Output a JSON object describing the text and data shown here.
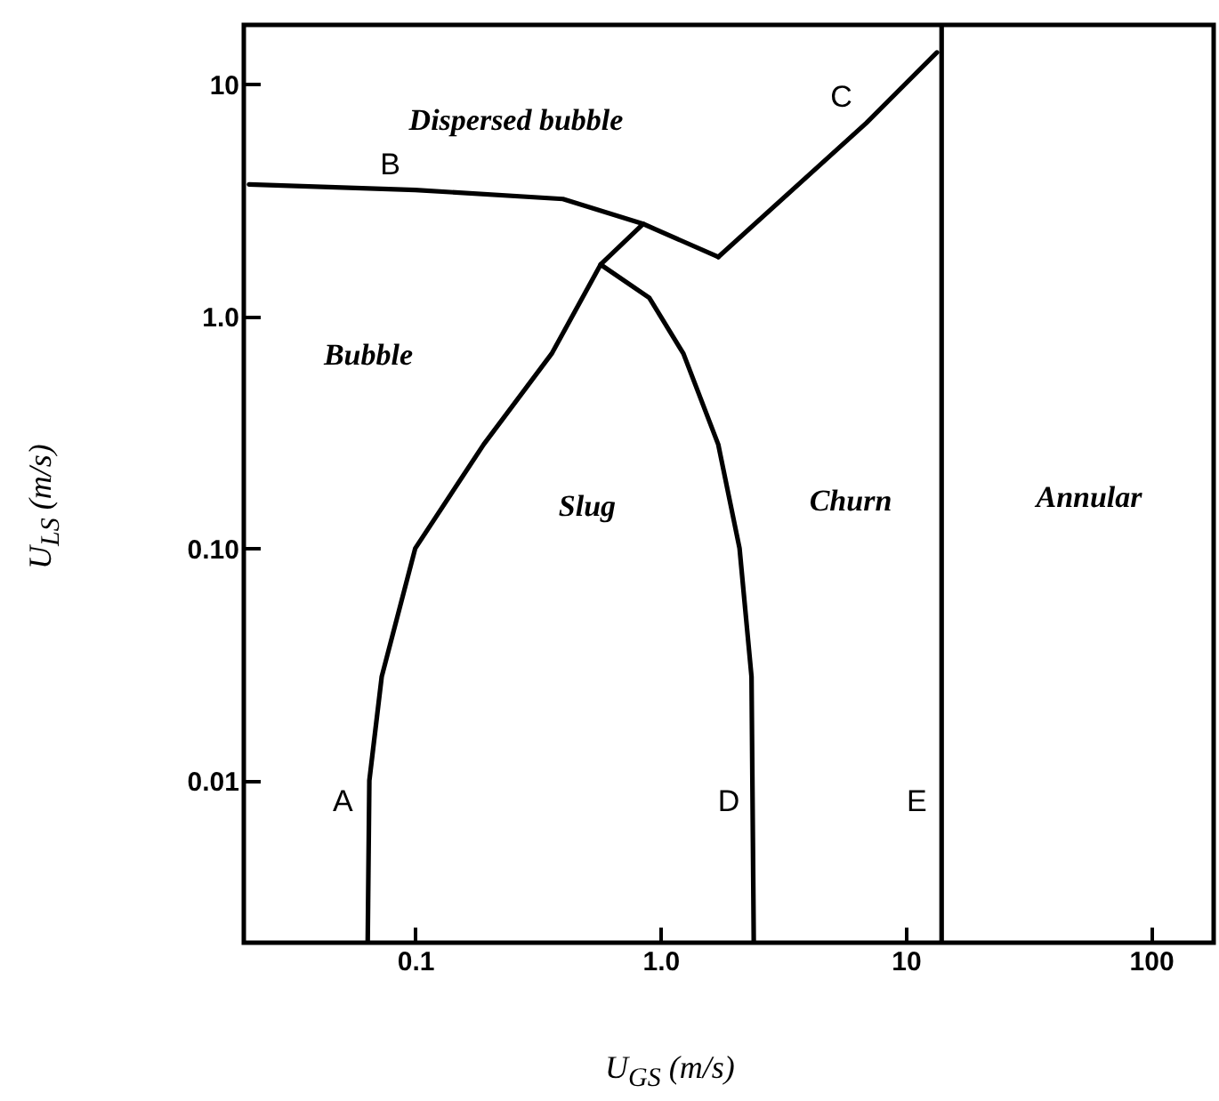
{
  "chart_data": {
    "type": "line",
    "xlabel": "U$_{GS}$ (m/s)",
    "ylabel": "U$_{LS}$ (m/s)",
    "log": "xy",
    "grid": false,
    "xlim": [
      0.02,
      180
    ],
    "ylim": [
      0.002,
      18
    ],
    "xticks": [
      0.1,
      {
        "value": 1,
        "label": "1.0"
      },
      10,
      100
    ],
    "yticks": [
      0.01,
      {
        "value": 0.1,
        "label": "0.10"
      },
      {
        "value": 1,
        "label": "1.0"
      },
      10
    ],
    "series": [
      {
        "color": "#000000",
        "x": [
          0.064,
          0.065,
          0.073,
          0.1,
          0.19,
          0.36,
          0.57,
          0.85
        ],
        "values": [
          0.002,
          0.01,
          0.028,
          0.1,
          0.28,
          0.69,
          1.67,
          2.5
        ]
      },
      {
        "color": "#000000",
        "x": [
          0.57,
          0.9,
          1.24,
          1.72,
          2.1,
          2.35,
          2.4
        ],
        "values": [
          1.67,
          1.2,
          0.69,
          0.28,
          0.1,
          0.028,
          0.002
        ]
      },
      {
        "color": "#000000",
        "x": [
          0.021,
          0.1,
          0.4,
          0.85,
          1.72
        ],
        "values": [
          3.7,
          3.5,
          3.2,
          2.5,
          1.8
        ]
      },
      {
        "color": "#000000",
        "x": [
          1.72,
          6.9,
          13.4
        ],
        "values": [
          1.8,
          6.8,
          13.7
        ]
      },
      {
        "color": "#000000",
        "x": [
          14,
          14
        ],
        "values": [
          0.002,
          18
        ]
      }
    ],
    "annotations": [
      {
        "text": "A",
        "x": 0.064,
        "y": 0.0063
      },
      {
        "text": "B",
        "x": 0.1,
        "y": 3.5
      },
      {
        "text": "C",
        "x": 6.9,
        "y": 6.8
      },
      {
        "text": "D",
        "x": 2.4,
        "y": 0.0063
      },
      {
        "text": "E",
        "x": 14,
        "y": 0.0063
      },
      "Dispersed bubble",
      "Bubble",
      "Slug",
      "Churn",
      "Annular"
    ]
  }
}
